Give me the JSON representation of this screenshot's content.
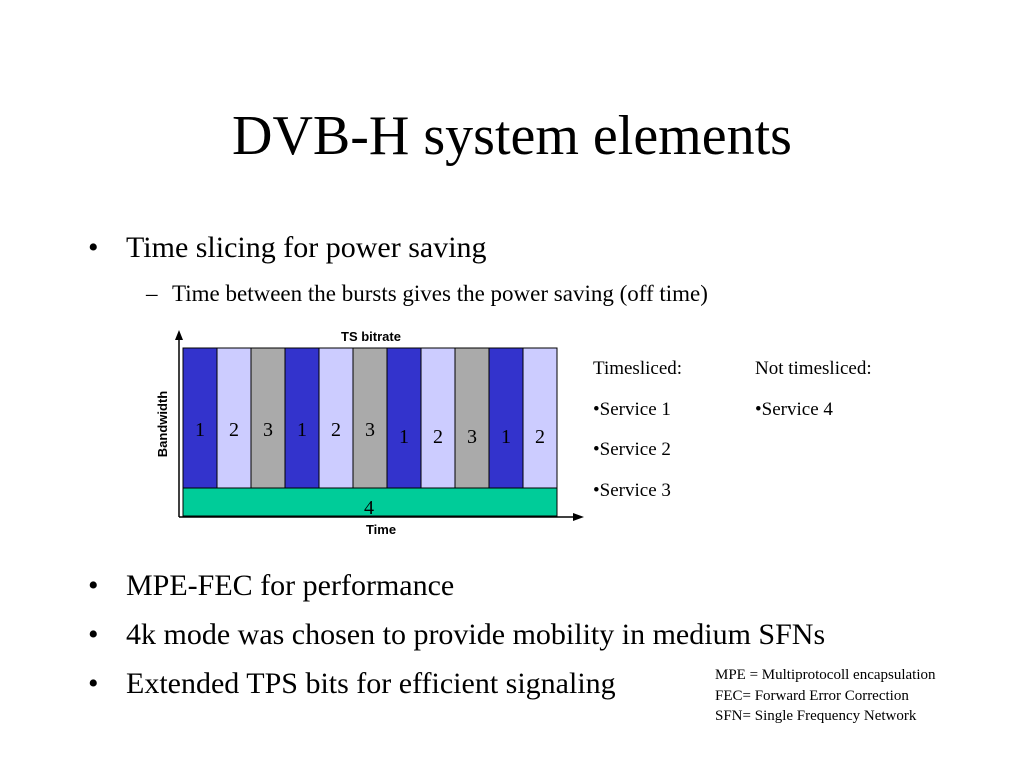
{
  "slide": {
    "title": "DVB-H system elements",
    "bullets": [
      "Time slicing for power saving",
      "MPE-FEC for performance",
      "4k mode was chosen to provide mobility in medium SFNs",
      "Extended TPS bits for efficient signaling"
    ],
    "sub_bullet": "Time between the bursts gives the power saving (off time)",
    "bullet_glyph": "•",
    "dash_glyph": "–"
  },
  "diagram": {
    "top_label": "TS bitrate",
    "y_label": "Bandwidth",
    "x_label": "Time",
    "bursts": [
      "1",
      "2",
      "3",
      "1",
      "2",
      "3",
      "1",
      "2",
      "3",
      "1",
      "2"
    ],
    "base_label": "4",
    "colors": {
      "service_1": "#3333cc",
      "service_2": "#ccccff",
      "service_3": "#aaaaaa",
      "service_4": "#00cc99"
    }
  },
  "legend": {
    "timesliced_header": "Timesliced:",
    "timesliced_items": [
      "•Service 1",
      "•Service 2",
      "•Service 3"
    ],
    "not_timesliced_header": "Not timesliced:",
    "not_timesliced_items": [
      "•Service 4"
    ]
  },
  "notes": [
    "MPE = Multiprotocoll encapsulation",
    "FEC= Forward Error Correction",
    "SFN= Single Frequency Network"
  ]
}
